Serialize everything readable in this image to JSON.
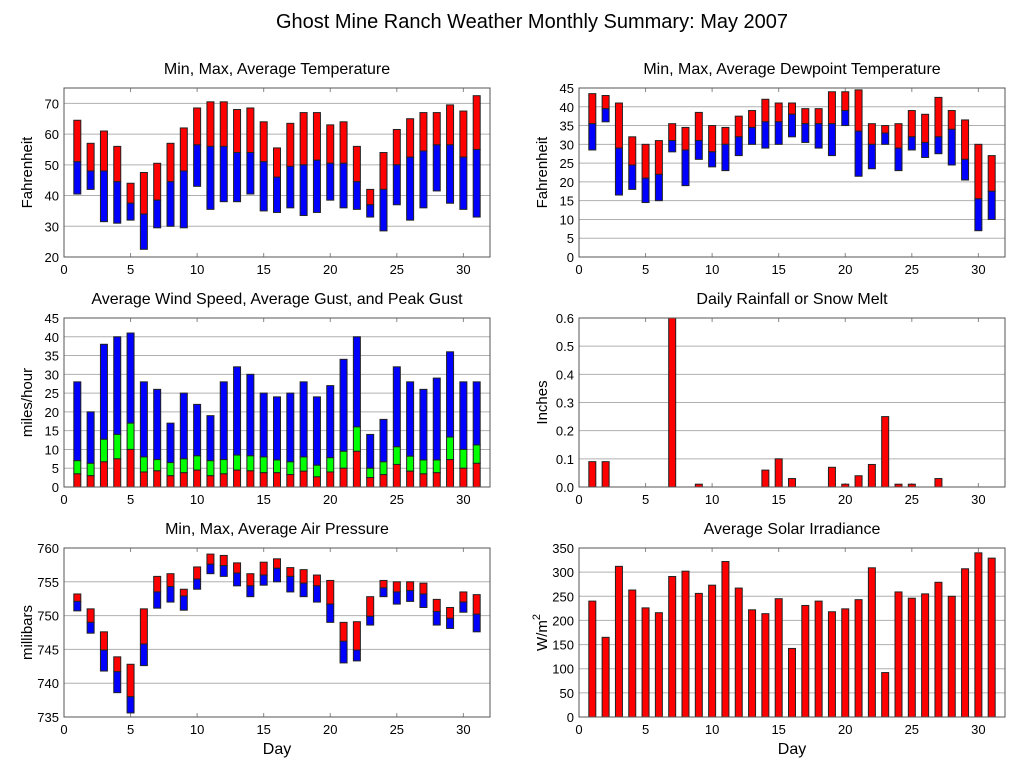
{
  "title": "Ghost Mine Ranch Weather Monthly Summary: May 2007",
  "colors": {
    "red": "#ff0000",
    "blue": "#0000ff",
    "green": "#00ff00"
  },
  "chart_data": [
    {
      "type": "bar",
      "stacked_range": true,
      "title": "Min, Max, Average Temperature",
      "xlabel": "",
      "ylabel": "Fahrenheit",
      "xlim": [
        0,
        32
      ],
      "ylim": [
        20,
        75
      ],
      "xticks": [
        0,
        5,
        10,
        15,
        20,
        25,
        30
      ],
      "yticks": [
        20,
        30,
        40,
        50,
        60,
        70
      ],
      "grid": true,
      "x": [
        1,
        2,
        3,
        4,
        5,
        6,
        7,
        8,
        9,
        10,
        11,
        12,
        13,
        14,
        15,
        16,
        17,
        18,
        19,
        20,
        21,
        22,
        23,
        24,
        25,
        26,
        27,
        28,
        29,
        30,
        31
      ],
      "max": [
        64.5,
        57,
        61,
        56,
        44,
        47.5,
        50.5,
        57,
        62,
        68.5,
        70.5,
        70.5,
        68,
        68.5,
        64,
        55.5,
        63.5,
        67,
        67,
        63,
        64,
        56,
        42,
        54,
        61.5,
        65,
        67,
        67,
        69.5,
        67.5,
        72.5
      ],
      "avg": [
        51,
        48,
        48,
        44.5,
        37.5,
        34,
        38.5,
        44.5,
        48,
        56.5,
        56,
        56,
        54,
        54,
        51,
        46,
        49.5,
        50,
        51.5,
        50.5,
        50.5,
        44.5,
        37,
        42,
        50,
        52.5,
        54.5,
        56.5,
        56.5,
        52.5,
        55
      ],
      "min": [
        40.5,
        42,
        31.5,
        31,
        32,
        22.5,
        29.5,
        30,
        29.5,
        43,
        35.5,
        38,
        38,
        40.5,
        35,
        34.5,
        36,
        33.5,
        34.5,
        38.5,
        36,
        35.5,
        33,
        28.5,
        37,
        32,
        36,
        41.5,
        37.5,
        35.5,
        33
      ]
    },
    {
      "type": "bar",
      "stacked_range": true,
      "title": "Min, Max, Average Dewpoint Temperature",
      "xlabel": "",
      "ylabel": "Fahrenheit",
      "xlim": [
        0,
        32
      ],
      "ylim": [
        0,
        45
      ],
      "xticks": [
        0,
        5,
        10,
        15,
        20,
        25,
        30
      ],
      "yticks": [
        0,
        5,
        10,
        15,
        20,
        25,
        30,
        35,
        40,
        45
      ],
      "grid": true,
      "x": [
        1,
        2,
        3,
        4,
        5,
        6,
        7,
        8,
        9,
        10,
        11,
        12,
        13,
        14,
        15,
        16,
        17,
        18,
        19,
        20,
        21,
        22,
        23,
        24,
        25,
        26,
        27,
        28,
        29,
        30,
        31
      ],
      "max": [
        43.5,
        43,
        41,
        32,
        30,
        31,
        35.5,
        34.5,
        38.5,
        35,
        34.5,
        37.5,
        39,
        42,
        41,
        41,
        39.5,
        39.5,
        44,
        44,
        44.5,
        35.5,
        35,
        35.5,
        39,
        38,
        42.5,
        39,
        36.5,
        30,
        27
      ],
      "avg": [
        35.5,
        39.5,
        29,
        24.5,
        21,
        22,
        31,
        28.5,
        31,
        28,
        30,
        32,
        34.5,
        36,
        36,
        38,
        35.5,
        35.5,
        35.5,
        39,
        33.5,
        30,
        33,
        29,
        32,
        30.5,
        32,
        34,
        26,
        15.5,
        17.5
      ],
      "min": [
        28.5,
        36,
        16.5,
        18,
        14.5,
        15,
        28,
        19,
        26,
        24,
        23,
        27,
        30,
        29,
        30,
        32,
        30.5,
        29,
        27,
        35,
        21.5,
        23.5,
        30,
        23,
        28.5,
        26.5,
        27.5,
        24.5,
        20.5,
        7,
        10
      ]
    },
    {
      "type": "bar",
      "stacked": true,
      "title": "Average Wind Speed, Average Gust, and Peak Gust",
      "xlabel": "",
      "ylabel": "miles/hour",
      "xlim": [
        0,
        32
      ],
      "ylim": [
        0,
        45
      ],
      "xticks": [
        0,
        5,
        10,
        15,
        20,
        25,
        30
      ],
      "yticks": [
        0,
        5,
        10,
        15,
        20,
        25,
        30,
        35,
        40,
        45
      ],
      "grid": true,
      "x": [
        1,
        2,
        3,
        4,
        5,
        6,
        7,
        8,
        9,
        10,
        11,
        12,
        13,
        14,
        15,
        16,
        17,
        18,
        19,
        20,
        21,
        22,
        23,
        24,
        25,
        26,
        27,
        28,
        29,
        30,
        31
      ],
      "peak_gust": [
        28,
        20,
        38,
        40,
        41,
        28,
        26,
        17,
        25,
        22,
        19,
        28,
        32,
        30,
        25,
        24,
        25,
        28,
        24,
        27,
        34,
        40,
        14,
        18,
        32,
        28,
        26,
        29,
        36,
        28,
        28
      ],
      "avg_gust": [
        7,
        6.3,
        12.7,
        14,
        17,
        8,
        7.3,
        6.5,
        7.5,
        8.3,
        7,
        7.3,
        8.5,
        8.3,
        8,
        7.2,
        6.7,
        8,
        5.8,
        7.8,
        9.5,
        16,
        5,
        6.7,
        10.7,
        8.2,
        7.2,
        7.2,
        13.3,
        10,
        11.2
      ],
      "avg_speed": [
        3.5,
        3,
        6.7,
        7.5,
        10,
        4,
        4.3,
        3,
        3.8,
        4.5,
        3,
        3.5,
        4.5,
        4.3,
        3.8,
        3.8,
        3.3,
        4.2,
        2.7,
        4,
        5,
        9.5,
        2.5,
        3.3,
        6,
        4.2,
        3.5,
        3.8,
        7.3,
        5,
        6.3
      ]
    },
    {
      "type": "bar",
      "title": "Daily Rainfall or Snow Melt",
      "xlabel": "",
      "ylabel": "Inches",
      "xlim": [
        0,
        32
      ],
      "ylim": [
        0,
        0.6
      ],
      "xticks": [
        0,
        5,
        10,
        15,
        20,
        25,
        30
      ],
      "yticks": [
        "0.0",
        "0.1",
        "0.2",
        "0.3",
        "0.4",
        "0.5",
        "0.6"
      ],
      "grid": true,
      "x": [
        1,
        2,
        3,
        4,
        5,
        6,
        7,
        8,
        9,
        10,
        11,
        12,
        13,
        14,
        15,
        16,
        17,
        18,
        19,
        20,
        21,
        22,
        23,
        24,
        25,
        26,
        27,
        28,
        29,
        30,
        31
      ],
      "values": [
        0.09,
        0.09,
        0,
        0,
        0,
        0,
        0.6,
        0,
        0.01,
        0,
        0,
        0,
        0,
        0.06,
        0.1,
        0.03,
        0,
        0,
        0.07,
        0.01,
        0.04,
        0.08,
        0.25,
        0.01,
        0.01,
        0,
        0.03,
        0,
        0,
        0,
        0
      ]
    },
    {
      "type": "bar",
      "stacked_range": true,
      "title": "Min, Max, Average Air Pressure",
      "xlabel": "Day",
      "ylabel": "millibars",
      "xlim": [
        0,
        32
      ],
      "ylim": [
        735,
        760
      ],
      "xticks": [
        0,
        5,
        10,
        15,
        20,
        25,
        30
      ],
      "yticks": [
        735,
        740,
        745,
        750,
        755,
        760
      ],
      "grid": true,
      "x": [
        1,
        2,
        3,
        4,
        5,
        6,
        7,
        8,
        9,
        10,
        11,
        12,
        13,
        14,
        15,
        16,
        17,
        18,
        19,
        20,
        21,
        22,
        23,
        24,
        25,
        26,
        27,
        28,
        29,
        30,
        31
      ],
      "max": [
        753.2,
        751,
        747.6,
        743.9,
        742.8,
        751,
        755.8,
        756.2,
        753.9,
        757.2,
        759.1,
        758.9,
        757.8,
        756.2,
        757.9,
        758.4,
        757.1,
        756.8,
        756,
        755.2,
        749,
        749.1,
        752.8,
        755.2,
        755,
        755,
        754.8,
        752.4,
        751.2,
        753.5,
        753.1
      ],
      "avg": [
        752.1,
        749,
        744.9,
        741.7,
        738,
        745.8,
        753.5,
        754.3,
        752.9,
        755.4,
        757.6,
        757.4,
        756.3,
        754.4,
        756,
        757,
        755.8,
        754.8,
        754.4,
        751.7,
        746.2,
        744.9,
        749.9,
        754.1,
        753.5,
        753.7,
        753.2,
        750.6,
        749.6,
        752,
        750.2
      ],
      "min": [
        750.7,
        747.4,
        741.8,
        738.6,
        735.6,
        742.6,
        751.1,
        752,
        750.8,
        753.9,
        756.2,
        755.8,
        754.4,
        752.8,
        754.5,
        755,
        753.5,
        752.8,
        752,
        749,
        743,
        743.3,
        748.6,
        752.8,
        751.7,
        752.1,
        751.2,
        748.6,
        748.1,
        750.5,
        747.6
      ]
    },
    {
      "type": "bar",
      "title": "Average Solar Irradiance",
      "xlabel": "Day",
      "ylabel": "W/m",
      "ylabel_sup": "2",
      "xlim": [
        0,
        32
      ],
      "ylim": [
        0,
        350
      ],
      "xticks": [
        0,
        5,
        10,
        15,
        20,
        25,
        30
      ],
      "yticks": [
        0,
        50,
        100,
        150,
        200,
        250,
        300,
        350
      ],
      "grid": true,
      "x": [
        1,
        2,
        3,
        4,
        5,
        6,
        7,
        8,
        9,
        10,
        11,
        12,
        13,
        14,
        15,
        16,
        17,
        18,
        19,
        20,
        21,
        22,
        23,
        24,
        25,
        26,
        27,
        28,
        29,
        30,
        31
      ],
      "values": [
        240,
        165,
        312,
        263,
        226,
        216,
        291,
        302,
        256,
        273,
        322,
        267,
        222,
        214,
        245,
        142,
        231,
        240,
        218,
        224,
        243,
        309,
        92,
        259,
        246,
        255,
        279,
        250,
        307,
        340,
        329
      ]
    }
  ]
}
